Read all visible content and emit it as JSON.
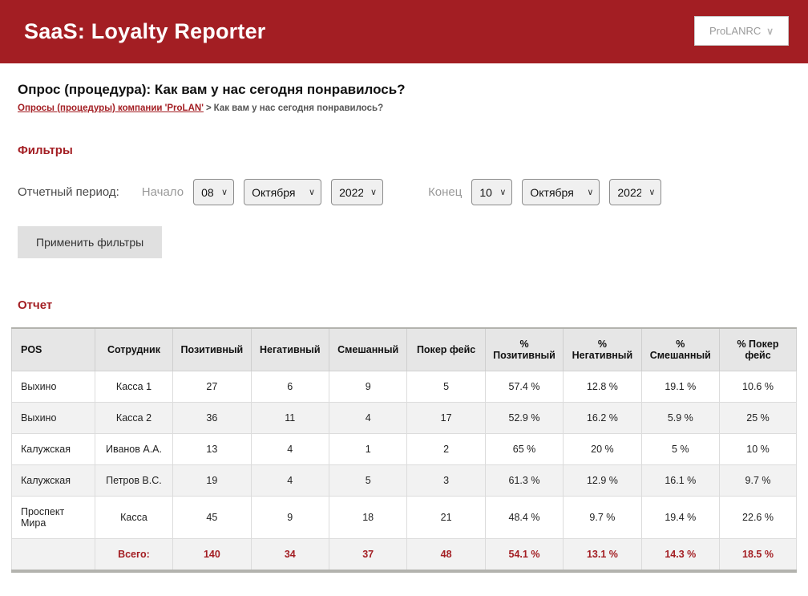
{
  "colors": {
    "brand_red": "#a31e23",
    "table_header_bg": "#e6e6e6",
    "zebra_row_bg": "#f2f2f2"
  },
  "header": {
    "title": "SaaS: Loyalty Reporter",
    "account": "ProLANRC",
    "chevron_icon": "∨"
  },
  "page": {
    "title": "Опрос (процедура): Как вам у нас сегодня понравилось?",
    "breadcrumb": {
      "link": "Опросы (процедуры) компании 'ProLAN'",
      "separator": ">",
      "current": "Как вам у нас сегодня понравилось?"
    }
  },
  "filters": {
    "heading": "Фильтры",
    "period_label": "Отчетный период:",
    "start_label": "Начало",
    "end_label": "Конец",
    "start": {
      "day": "08",
      "month": "Октября",
      "year": "2022"
    },
    "end": {
      "day": "10",
      "month": "Октября",
      "year": "2022"
    },
    "apply_button": "Применить фильтры",
    "chevron_icon": "∨"
  },
  "report": {
    "heading": "Отчет",
    "columns": [
      "POS",
      "Сотрудник",
      "Позитивный",
      "Негативный",
      "Смешанный",
      "Покер фейс",
      "% Позитивный",
      "% Негативный",
      "% Смешанный",
      "% Покер фейс"
    ],
    "rows": [
      [
        "Выхино",
        "Касса 1",
        "27",
        "6",
        "9",
        "5",
        "57.4 %",
        "12.8 %",
        "19.1 %",
        "10.6 %"
      ],
      [
        "Выхино",
        "Касса 2",
        "36",
        "11",
        "4",
        "17",
        "52.9 %",
        "16.2 %",
        "5.9 %",
        "25 %"
      ],
      [
        "Калужская",
        "Иванов А.А.",
        "13",
        "4",
        "1",
        "2",
        "65 %",
        "20 %",
        "5 %",
        "10 %"
      ],
      [
        "Калужская",
        "Петров В.С.",
        "19",
        "4",
        "5",
        "3",
        "61.3 %",
        "12.9 %",
        "16.1 %",
        "9.7 %"
      ],
      [
        "Проспект Мира",
        "Касса",
        "45",
        "9",
        "18",
        "21",
        "48.4 %",
        "9.7 %",
        "19.4 %",
        "22.6 %"
      ]
    ],
    "total_row": [
      "",
      "Всего:",
      "140",
      "34",
      "37",
      "48",
      "54.1 %",
      "13.1 %",
      "14.3 %",
      "18.5 %"
    ]
  }
}
